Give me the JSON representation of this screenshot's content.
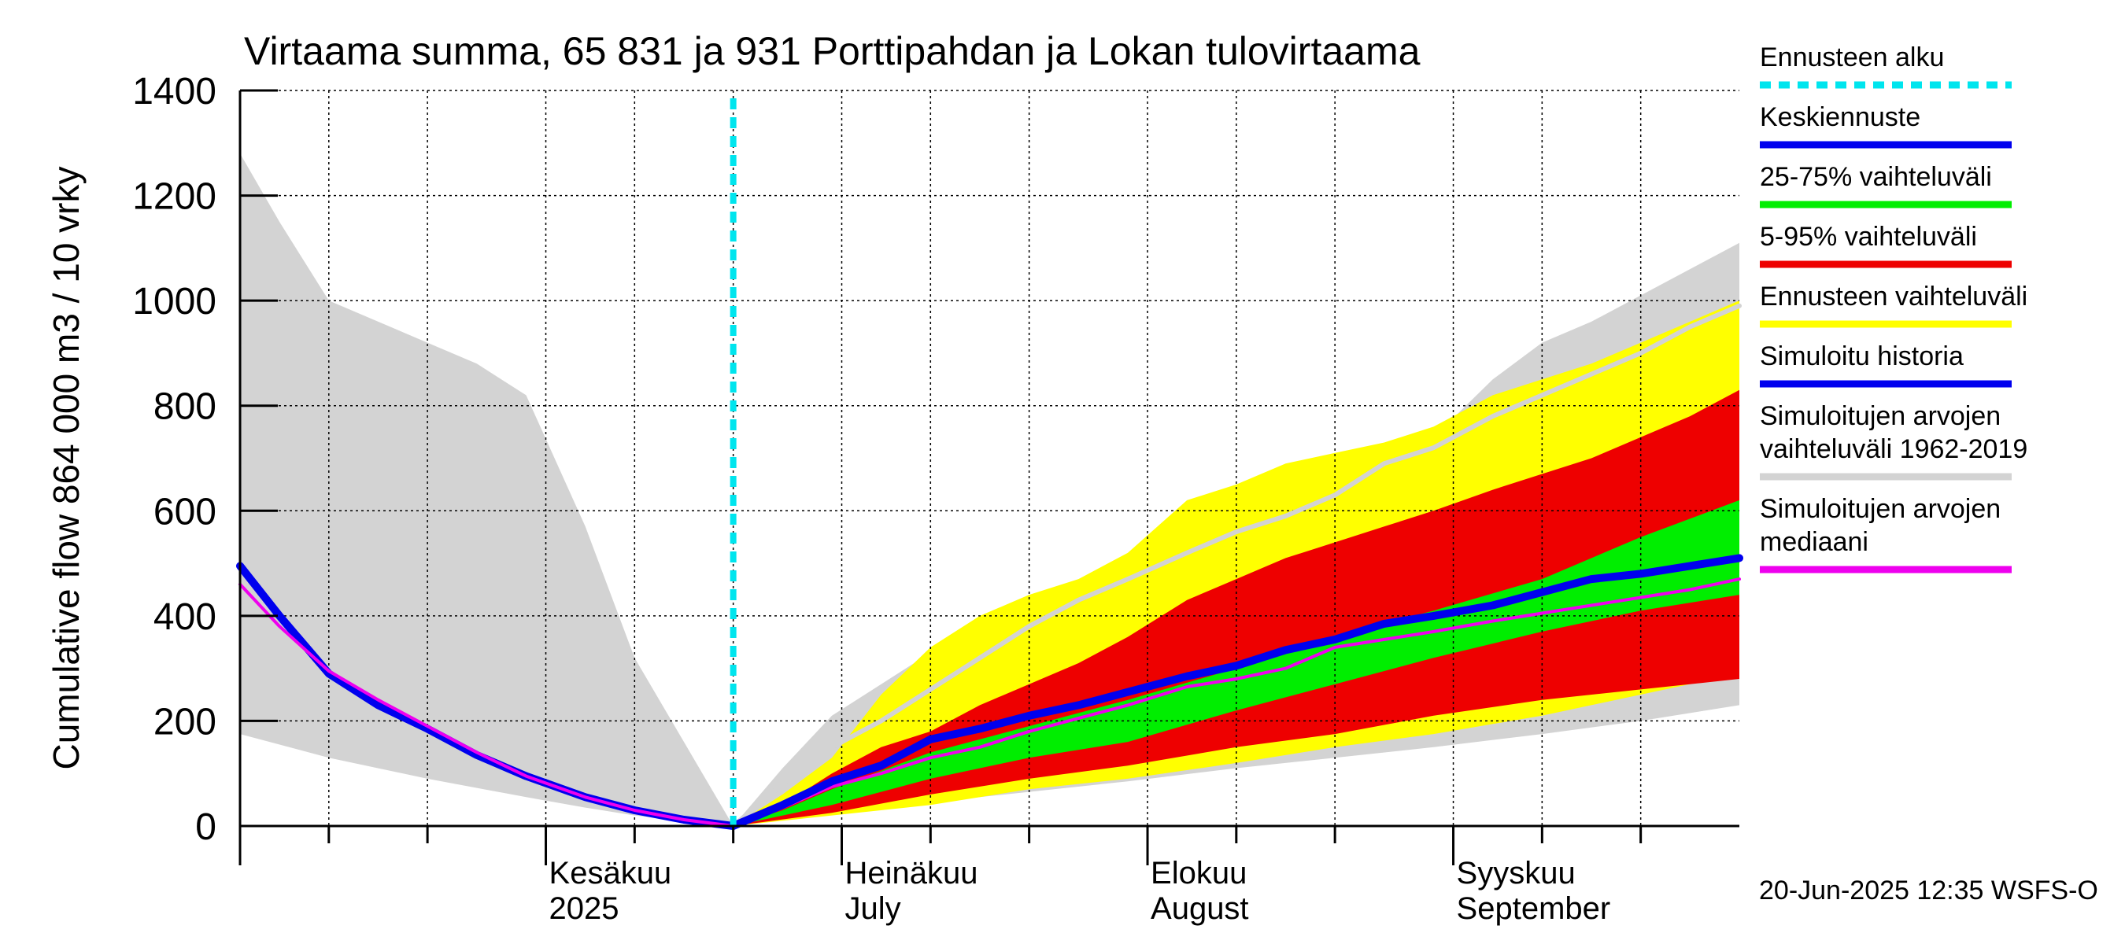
{
  "chart_data": {
    "type": "area",
    "title": "Virtaama summa, 65 831 ja 931 Porttipahdan ja Lokan tulovirtaama",
    "ylabel": "Cumulative flow    864 000 m3 / 10 vrky",
    "ylim": [
      0,
      1400
    ],
    "yticks": [
      0,
      200,
      400,
      600,
      800,
      1000,
      1200,
      1400
    ],
    "xlim": [
      "2025-05-01",
      "2025-09-30"
    ],
    "month_labels": [
      {
        "line1": "Kesäkuu",
        "line2": "2025",
        "date": "2025-06-01"
      },
      {
        "line1": "Heinäkuu",
        "line2": "July",
        "date": "2025-07-01"
      },
      {
        "line1": "Elokuu",
        "line2": "August",
        "date": "2025-08-01"
      },
      {
        "line1": "Syyskuu",
        "line2": "September",
        "date": "2025-09-01"
      }
    ],
    "forecast_start": "2025-06-20",
    "footer": "20-Jun-2025 12:35 WSFS-O",
    "colors": {
      "forecast_start": "#00e5ee",
      "mean_forecast": "#0000ee",
      "range_25_75": "#00ee00",
      "range_5_95": "#ee0000",
      "forecast_range": "#ffff00",
      "simulated_history": "#0000ee",
      "historic_range": "#d3d3d3",
      "historic_median": "#ee00ee"
    },
    "legend": [
      {
        "label": "Ennusteen alku",
        "key": "forecast_start",
        "style": "dashed"
      },
      {
        "label": "Keskiennuste",
        "key": "mean_forecast",
        "style": "solid"
      },
      {
        "label": "25-75% vaihteluväli",
        "key": "range_25_75",
        "style": "solid"
      },
      {
        "label": "5-95% vaihteluväli",
        "key": "range_5_95",
        "style": "solid"
      },
      {
        "label": "Ennusteen vaihteluväli",
        "key": "forecast_range",
        "style": "solid"
      },
      {
        "label": "Simuloitu historia",
        "key": "simulated_history",
        "style": "solid"
      },
      {
        "label": "Simuloitujen arvojen vaihteluväli 1962-2019",
        "lines": [
          "Simuloitujen arvojen",
          "vaihteluväli 1962-2019"
        ],
        "key": "historic_range",
        "style": "solid"
      },
      {
        "label": "Simuloitujen arvojen mediaani",
        "lines": [
          "Simuloitujen arvojen",
          "mediaani"
        ],
        "key": "historic_median",
        "style": "solid"
      }
    ],
    "series": {
      "historic_range_upper": {
        "x": [
          "2025-05-01",
          "2025-05-05",
          "2025-05-10",
          "2025-05-15",
          "2025-05-20",
          "2025-05-25",
          "2025-05-30",
          "2025-06-05",
          "2025-06-10",
          "2025-06-15",
          "2025-06-20",
          "2025-06-25",
          "2025-06-30",
          "2025-07-05",
          "2025-07-10",
          "2025-07-15",
          "2025-07-20",
          "2025-07-25",
          "2025-07-30",
          "2025-08-05",
          "2025-08-10",
          "2025-08-15",
          "2025-08-20",
          "2025-08-25",
          "2025-08-30",
          "2025-09-05",
          "2025-09-10",
          "2025-09-15",
          "2025-09-20",
          "2025-09-25",
          "2025-09-30"
        ],
        "y": [
          1280,
          1150,
          1000,
          960,
          920,
          880,
          820,
          570,
          320,
          160,
          0,
          110,
          210,
          270,
          330,
          380,
          420,
          460,
          490,
          540,
          580,
          620,
          650,
          700,
          740,
          850,
          920,
          960,
          1010,
          1060,
          1110
        ]
      },
      "historic_range_lower": {
        "x": [
          "2025-05-01",
          "2025-05-10",
          "2025-05-20",
          "2025-05-30",
          "2025-06-05",
          "2025-06-10",
          "2025-06-15",
          "2025-06-20",
          "2025-06-30",
          "2025-07-10",
          "2025-07-20",
          "2025-07-30",
          "2025-08-10",
          "2025-08-20",
          "2025-08-30",
          "2025-09-10",
          "2025-09-20",
          "2025-09-30"
        ],
        "y": [
          175,
          130,
          90,
          55,
          35,
          20,
          10,
          0,
          25,
          45,
          65,
          85,
          110,
          130,
          150,
          175,
          200,
          230
        ]
      },
      "forecast_range_upper": {
        "x": [
          "2025-06-20",
          "2025-06-25",
          "2025-06-30",
          "2025-07-05",
          "2025-07-10",
          "2025-07-15",
          "2025-07-20",
          "2025-07-25",
          "2025-07-30",
          "2025-08-05",
          "2025-08-10",
          "2025-08-15",
          "2025-08-20",
          "2025-08-25",
          "2025-08-30",
          "2025-09-05",
          "2025-09-10",
          "2025-09-15",
          "2025-09-20",
          "2025-09-25",
          "2025-09-30"
        ],
        "y": [
          0,
          60,
          130,
          250,
          340,
          400,
          440,
          470,
          520,
          620,
          650,
          690,
          710,
          730,
          760,
          820,
          850,
          880,
          920,
          960,
          1000
        ]
      },
      "forecast_range_lower": {
        "x": [
          "2025-06-20",
          "2025-06-30",
          "2025-07-10",
          "2025-07-20",
          "2025-07-30",
          "2025-08-10",
          "2025-08-20",
          "2025-08-30",
          "2025-09-10",
          "2025-09-20",
          "2025-09-30"
        ],
        "y": [
          0,
          20,
          40,
          70,
          90,
          120,
          150,
          175,
          210,
          250,
          290
        ]
      },
      "p5_95_upper": {
        "x": [
          "2025-06-20",
          "2025-06-25",
          "2025-06-30",
          "2025-07-05",
          "2025-07-10",
          "2025-07-15",
          "2025-07-20",
          "2025-07-25",
          "2025-07-30",
          "2025-08-05",
          "2025-08-10",
          "2025-08-15",
          "2025-08-20",
          "2025-08-25",
          "2025-08-30",
          "2025-09-05",
          "2025-09-10",
          "2025-09-15",
          "2025-09-20",
          "2025-09-25",
          "2025-09-30"
        ],
        "y": [
          0,
          40,
          100,
          150,
          180,
          230,
          270,
          310,
          360,
          430,
          470,
          510,
          540,
          570,
          600,
          640,
          670,
          700,
          740,
          780,
          830
        ]
      },
      "p5_95_lower": {
        "x": [
          "2025-06-20",
          "2025-06-30",
          "2025-07-10",
          "2025-07-20",
          "2025-07-30",
          "2025-08-10",
          "2025-08-20",
          "2025-08-30",
          "2025-09-10",
          "2025-09-20",
          "2025-09-30"
        ],
        "y": [
          0,
          25,
          60,
          90,
          115,
          150,
          175,
          210,
          240,
          260,
          280
        ]
      },
      "p25_75_upper": {
        "x": [
          "2025-06-20",
          "2025-06-25",
          "2025-06-30",
          "2025-07-10",
          "2025-07-20",
          "2025-07-30",
          "2025-08-10",
          "2025-08-20",
          "2025-08-30",
          "2025-09-10",
          "2025-09-20",
          "2025-09-30"
        ],
        "y": [
          0,
          30,
          70,
          140,
          190,
          240,
          300,
          360,
          410,
          470,
          550,
          620
        ]
      },
      "p25_75_lower": {
        "x": [
          "2025-06-20",
          "2025-06-30",
          "2025-07-10",
          "2025-07-20",
          "2025-07-30",
          "2025-08-10",
          "2025-08-20",
          "2025-08-30",
          "2025-09-10",
          "2025-09-20",
          "2025-09-30"
        ],
        "y": [
          0,
          40,
          90,
          130,
          160,
          220,
          270,
          320,
          370,
          410,
          440
        ]
      },
      "historic_mean_line": {
        "x": [
          "2025-06-20",
          "2025-06-25",
          "2025-06-30",
          "2025-07-05",
          "2025-07-10",
          "2025-07-15",
          "2025-07-20",
          "2025-07-25",
          "2025-07-30",
          "2025-08-05",
          "2025-08-10",
          "2025-08-15",
          "2025-08-20",
          "2025-08-25",
          "2025-08-30",
          "2025-09-05",
          "2025-09-10",
          "2025-09-15",
          "2025-09-20",
          "2025-09-25",
          "2025-09-30"
        ],
        "y": [
          0,
          80,
          150,
          200,
          260,
          320,
          380,
          430,
          470,
          520,
          560,
          590,
          630,
          690,
          720,
          780,
          820,
          860,
          900,
          950,
          990
        ]
      },
      "simulated_history": {
        "x": [
          "2025-05-01",
          "2025-05-05",
          "2025-05-10",
          "2025-05-15",
          "2025-05-20",
          "2025-05-25",
          "2025-05-30",
          "2025-06-05",
          "2025-06-10",
          "2025-06-15",
          "2025-06-20"
        ],
        "y": [
          495,
          400,
          290,
          230,
          185,
          135,
          95,
          55,
          30,
          12,
          0
        ]
      },
      "historic_median": {
        "x": [
          "2025-05-01",
          "2025-05-05",
          "2025-05-10",
          "2025-05-15",
          "2025-05-20",
          "2025-05-25",
          "2025-05-30",
          "2025-06-05",
          "2025-06-10",
          "2025-06-15",
          "2025-06-20",
          "2025-06-25",
          "2025-06-30",
          "2025-07-05",
          "2025-07-10",
          "2025-07-15",
          "2025-07-20",
          "2025-07-25",
          "2025-07-30",
          "2025-08-05",
          "2025-08-10",
          "2025-08-15",
          "2025-08-20",
          "2025-08-25",
          "2025-08-30",
          "2025-09-05",
          "2025-09-10",
          "2025-09-15",
          "2025-09-20",
          "2025-09-25",
          "2025-09-30"
        ],
        "y": [
          460,
          380,
          295,
          240,
          190,
          140,
          95,
          55,
          30,
          12,
          0,
          35,
          75,
          100,
          130,
          150,
          180,
          205,
          230,
          265,
          280,
          300,
          340,
          355,
          370,
          390,
          405,
          420,
          435,
          450,
          470
        ]
      },
      "mean_forecast": {
        "x": [
          "2025-06-20",
          "2025-06-25",
          "2025-06-30",
          "2025-07-05",
          "2025-07-10",
          "2025-07-15",
          "2025-07-20",
          "2025-07-25",
          "2025-07-30",
          "2025-08-05",
          "2025-08-10",
          "2025-08-15",
          "2025-08-20",
          "2025-08-25",
          "2025-08-30",
          "2025-09-05",
          "2025-09-10",
          "2025-09-15",
          "2025-09-20",
          "2025-09-25",
          "2025-09-30"
        ],
        "y": [
          0,
          40,
          85,
          115,
          165,
          185,
          210,
          230,
          255,
          285,
          305,
          335,
          355,
          385,
          400,
          420,
          445,
          470,
          480,
          495,
          510
        ]
      }
    }
  }
}
